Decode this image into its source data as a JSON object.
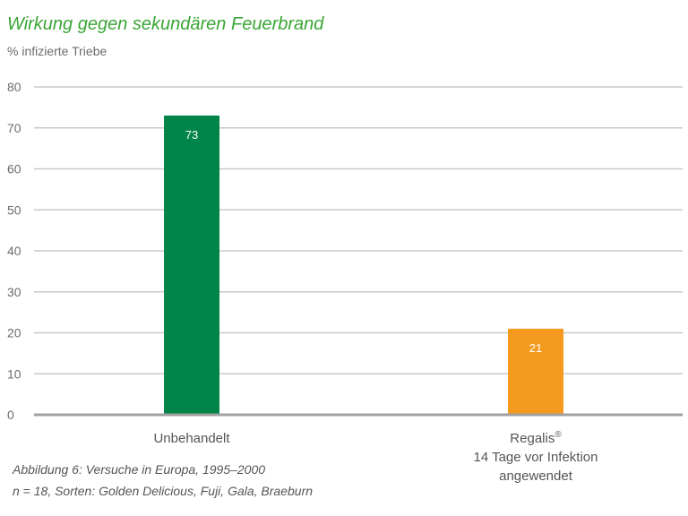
{
  "title": "Wirkung gegen sekundären Feuerbrand",
  "ylabel": "% infizierte Triebe",
  "caption": {
    "line1": "Abbildung 6: Versuche in Europa, 1995–2000",
    "line2": "n = 18, Sorten: Golden Delicious, Fuji, Gala, Braeburn"
  },
  "colors": {
    "title": "#3aa535",
    "grid": "#c9c9c9",
    "axis": "#a0a0a0",
    "text": "#6d6d6d"
  },
  "chart_data": {
    "type": "bar",
    "title": "Wirkung gegen sekundären Feuerbrand",
    "ylabel": "% infizierte Triebe",
    "xlabel": "",
    "ylim": [
      0,
      80
    ],
    "yticks": [
      0,
      10,
      20,
      30,
      40,
      50,
      60,
      70,
      80
    ],
    "grid": true,
    "categories": [
      {
        "lines": [
          "Unbehandelt"
        ],
        "superscript": ""
      },
      {
        "lines": [
          "Regalis",
          "14 Tage vor Infektion",
          "angewendet"
        ],
        "superscript": "®"
      }
    ],
    "values": [
      73,
      21
    ],
    "data_labels": [
      "73",
      "21"
    ],
    "bar_colors": [
      "#00844a",
      "#f39a1f"
    ]
  }
}
